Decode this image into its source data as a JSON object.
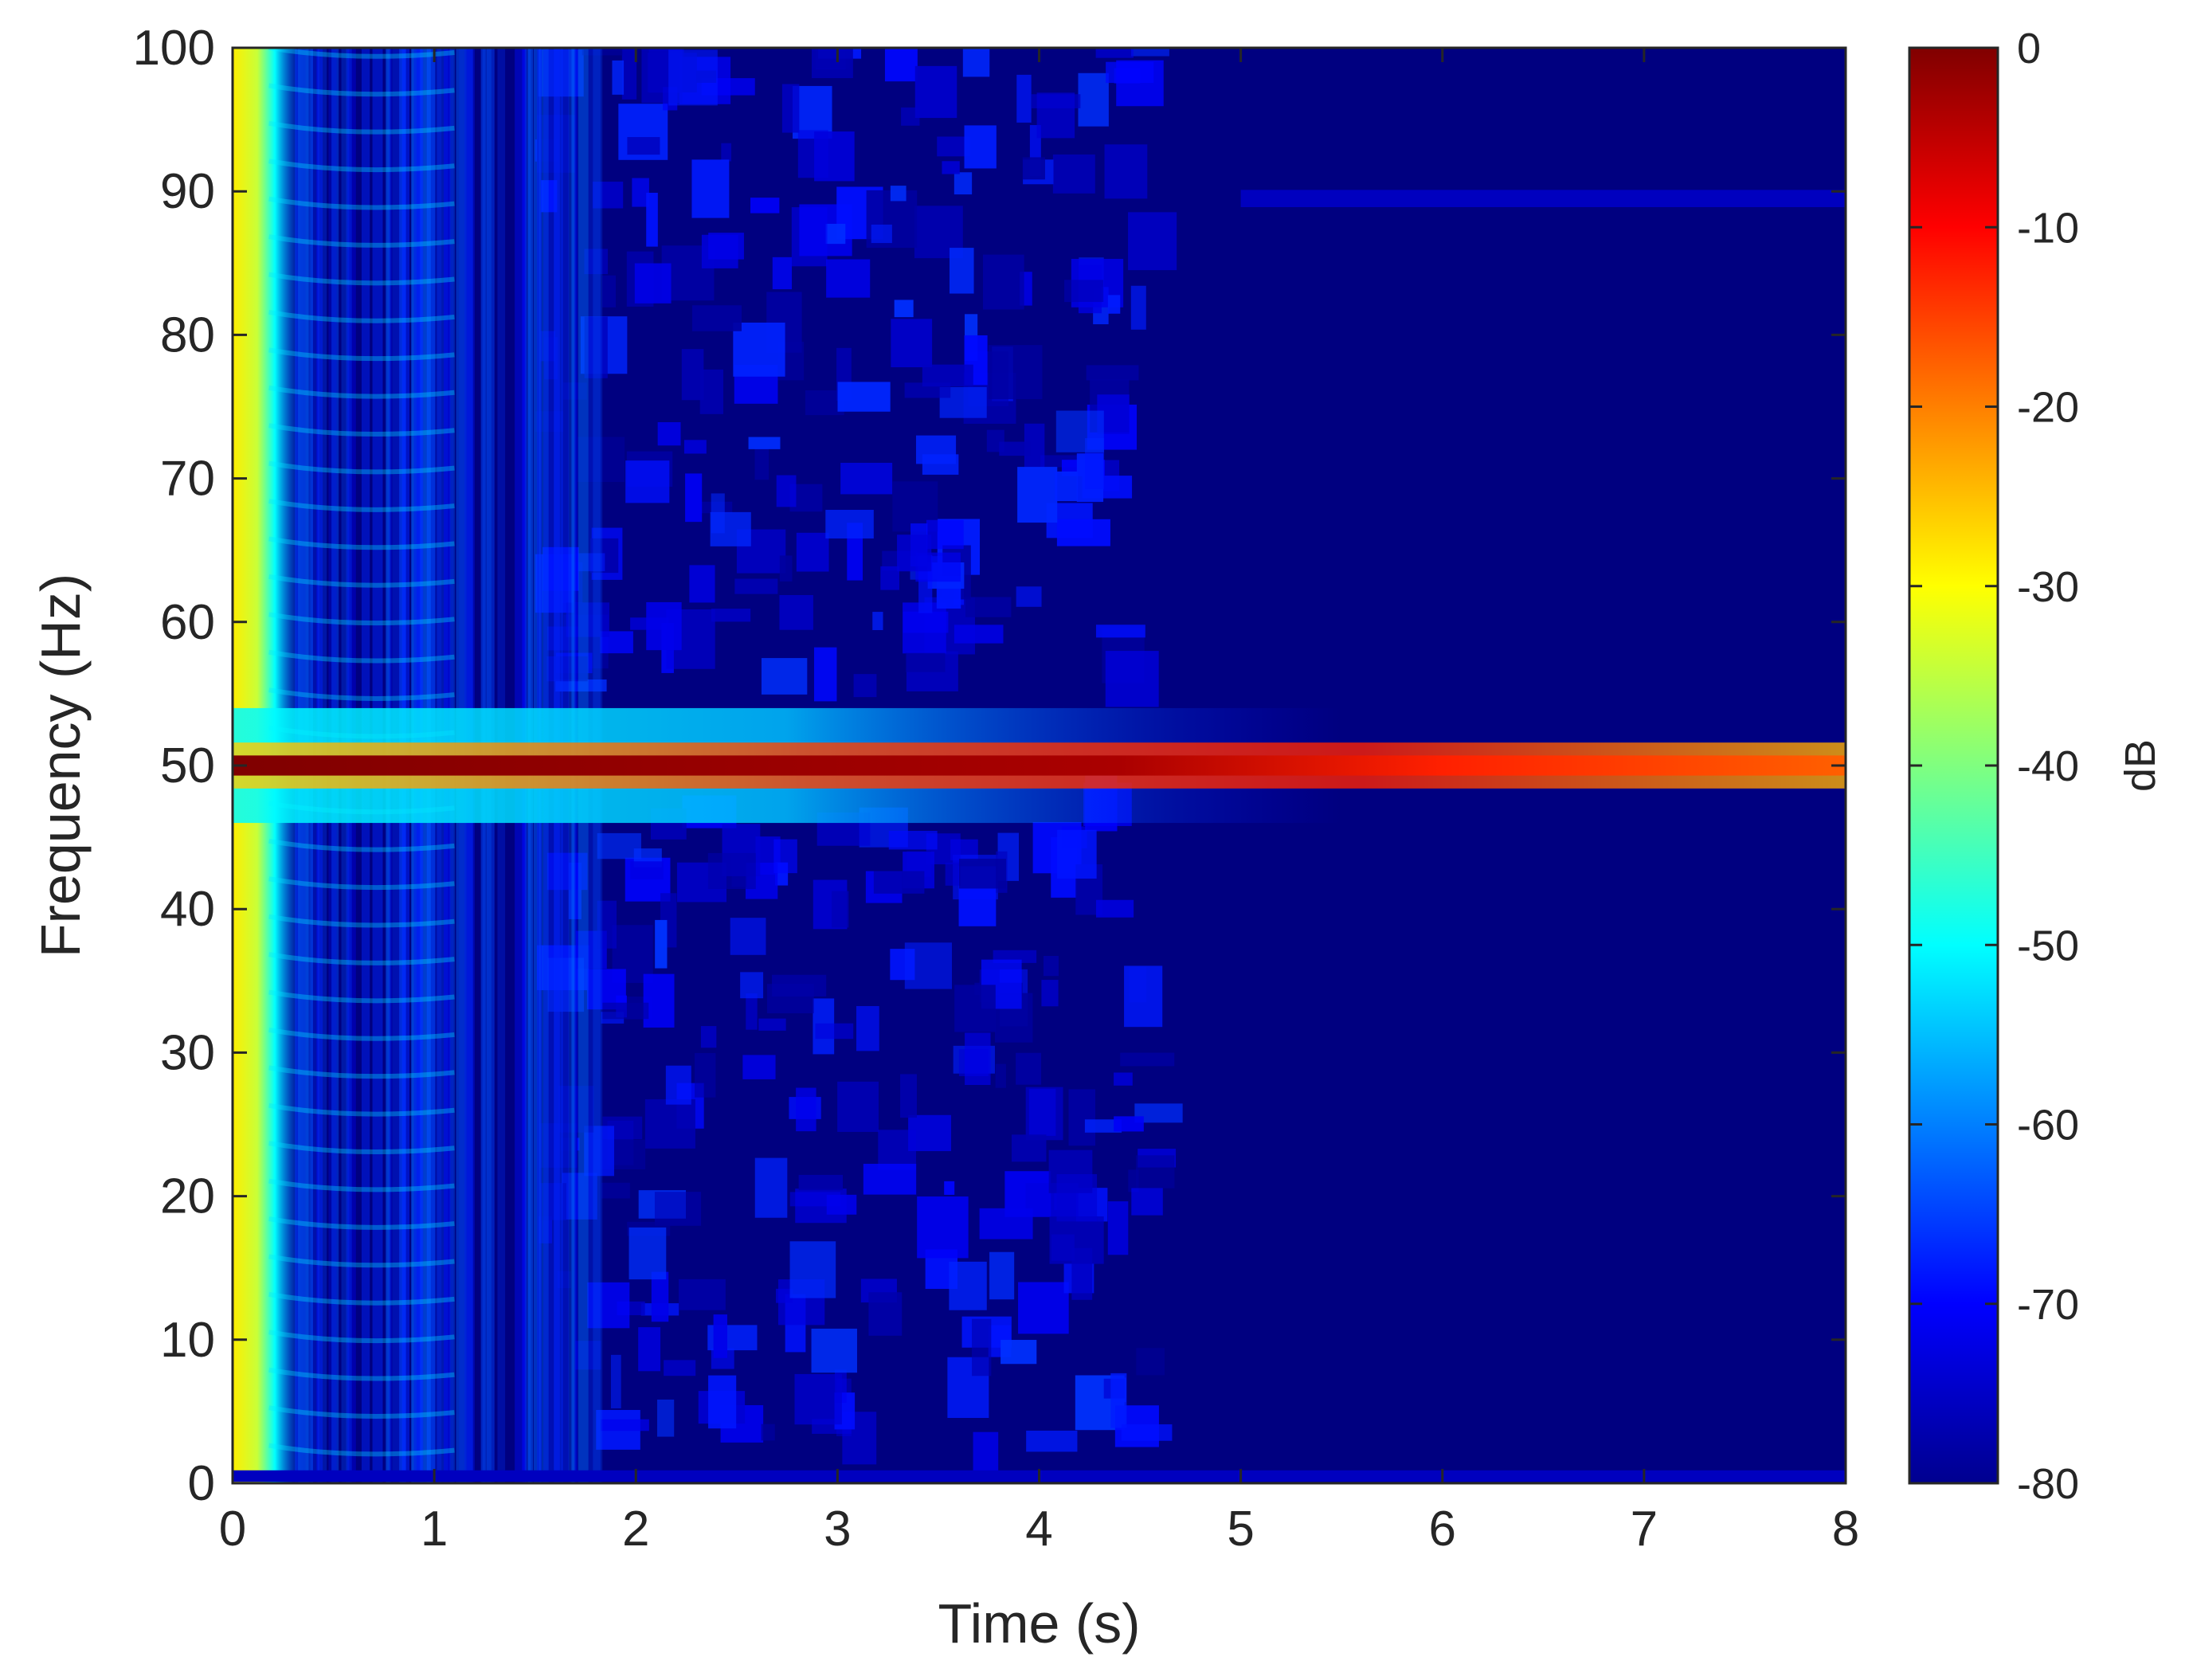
{
  "chart_data": {
    "type": "heatmap",
    "subtype": "spectrogram",
    "title": "",
    "xlabel": "Time (s)",
    "ylabel": "Frequency (Hz)",
    "xlim": [
      0,
      8
    ],
    "ylim": [
      0,
      100
    ],
    "xticks": [
      0,
      1,
      2,
      3,
      4,
      5,
      6,
      7,
      8
    ],
    "yticks": [
      0,
      10,
      20,
      30,
      40,
      50,
      60,
      70,
      80,
      90,
      100
    ],
    "colormap": "jet",
    "colorbar": {
      "label": "dB",
      "range": [
        -80,
        0
      ],
      "ticks": [
        0,
        -10,
        -20,
        -30,
        -40,
        -50,
        -60,
        -70,
        -80
      ],
      "placement": "right"
    },
    "grid": false,
    "features": [
      {
        "name": "dominant tone",
        "frequency_hz": 50,
        "time_s": [
          0,
          8
        ],
        "level_db_start": 0,
        "level_db_end": -15
      },
      {
        "name": "low-frequency onset transient",
        "time_s": [
          0,
          0.3
        ],
        "frequency_hz": [
          0,
          100
        ],
        "level_db": -30
      },
      {
        "name": "spectral leakage around tone",
        "time_s": [
          0,
          5.5
        ],
        "frequency_hz": [
          46,
          54
        ],
        "level_db": -55
      },
      {
        "name": "faint component",
        "frequency_hz": 89.5,
        "time_s": [
          5,
          8
        ],
        "level_db": -75
      },
      {
        "name": "DC floor line",
        "frequency_hz": 0.5,
        "time_s": [
          0,
          8
        ],
        "level_db": -75
      }
    ],
    "background_level_db": -80
  }
}
